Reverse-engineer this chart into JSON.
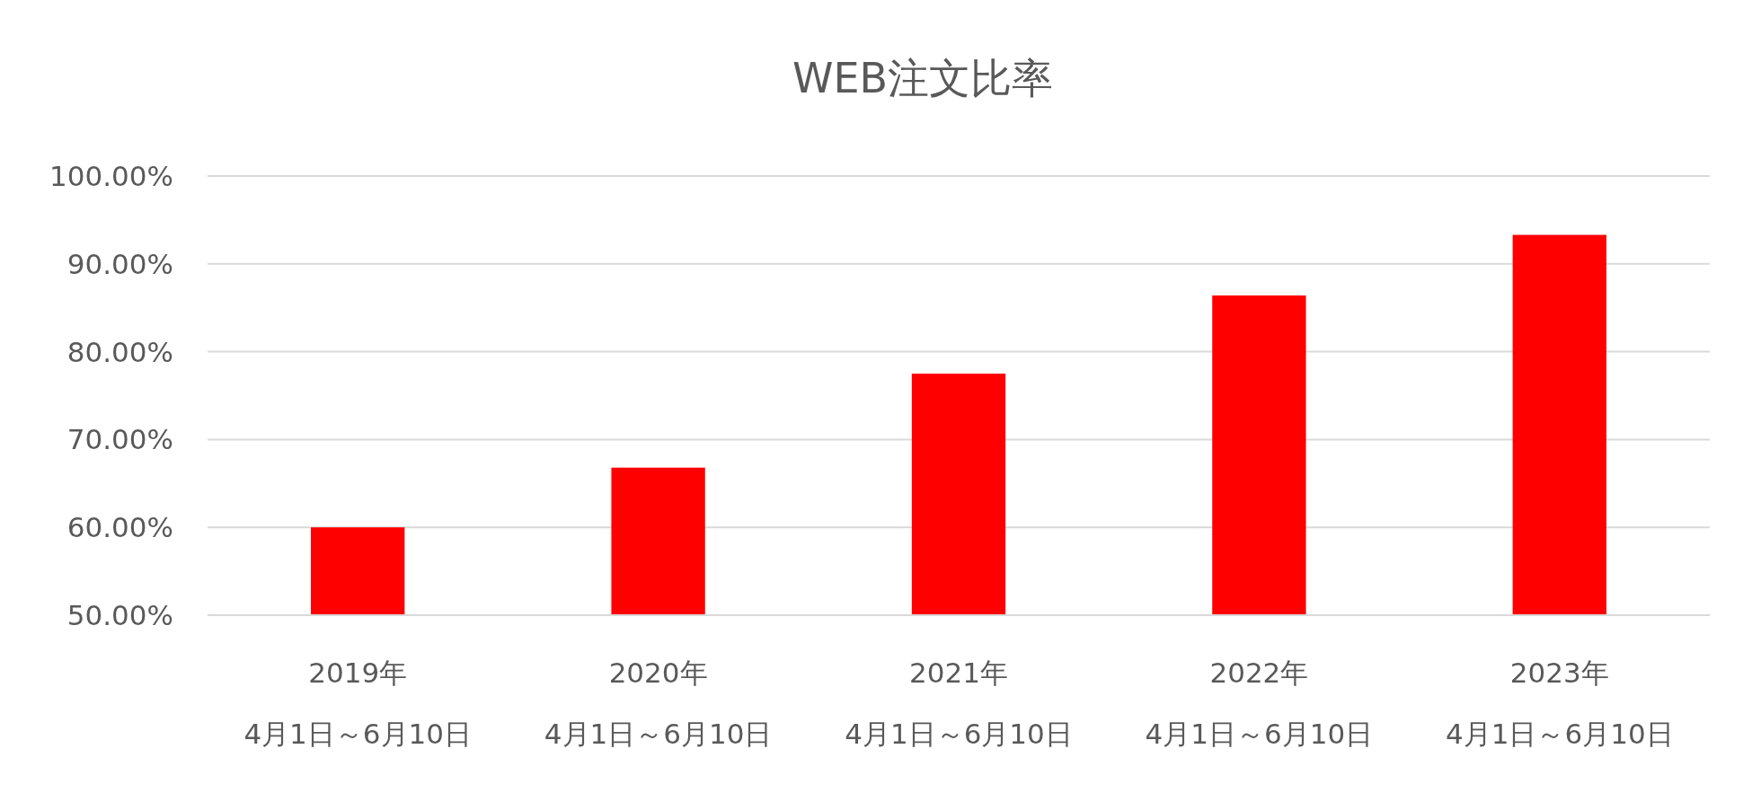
{
  "chart_data": {
    "type": "bar",
    "title": "WEB注文比率",
    "categories": [
      "2019年\n4月1日～6月10日",
      "2020年\n4月1日～6月10日",
      "2021年\n4月1日～6月10日",
      "2022年\n4月1日～6月10日",
      "2023年\n4月1日～6月10日"
    ],
    "values": [
      60.0,
      66.8,
      77.5,
      86.4,
      93.3
    ],
    "color": "#ff0000",
    "ylim": [
      50,
      100
    ],
    "yticks": [
      {
        "value": 50,
        "label": "50.00%"
      },
      {
        "value": 60,
        "label": "60.00%"
      },
      {
        "value": 70,
        "label": "70.00%"
      },
      {
        "value": 80,
        "label": "80.00%"
      },
      {
        "value": 90,
        "label": "90.00%"
      },
      {
        "value": 100,
        "label": "100.00%"
      }
    ],
    "grid": "y"
  }
}
